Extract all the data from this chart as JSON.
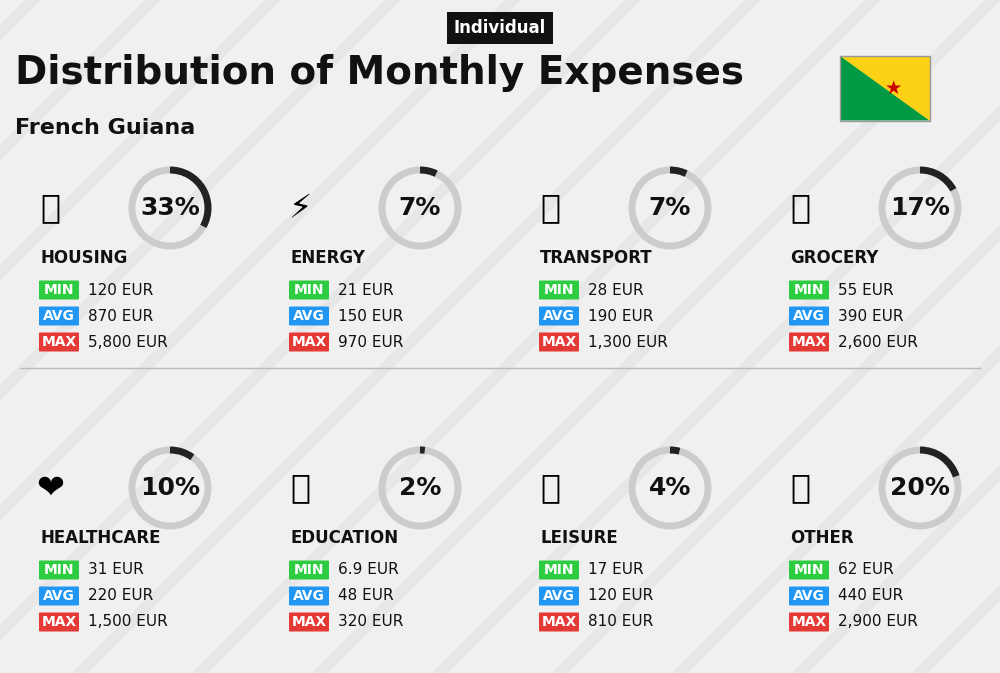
{
  "title": "Distribution of Monthly Expenses",
  "subtitle": "French Guiana",
  "badge": "Individual",
  "background_color": "#f0f0f0",
  "categories": [
    {
      "name": "HOUSING",
      "percent": 33,
      "min": "120 EUR",
      "avg": "870 EUR",
      "max": "5,800 EUR",
      "col": 0,
      "row": 0
    },
    {
      "name": "ENERGY",
      "percent": 7,
      "min": "21 EUR",
      "avg": "150 EUR",
      "max": "970 EUR",
      "col": 1,
      "row": 0
    },
    {
      "name": "TRANSPORT",
      "percent": 7,
      "min": "28 EUR",
      "avg": "190 EUR",
      "max": "1,300 EUR",
      "col": 2,
      "row": 0
    },
    {
      "name": "GROCERY",
      "percent": 17,
      "min": "55 EUR",
      "avg": "390 EUR",
      "max": "2,600 EUR",
      "col": 3,
      "row": 0
    },
    {
      "name": "HEALTHCARE",
      "percent": 10,
      "min": "31 EUR",
      "avg": "220 EUR",
      "max": "1,500 EUR",
      "col": 0,
      "row": 1
    },
    {
      "name": "EDUCATION",
      "percent": 2,
      "min": "6.9 EUR",
      "avg": "48 EUR",
      "max": "320 EUR",
      "col": 1,
      "row": 1
    },
    {
      "name": "LEISURE",
      "percent": 4,
      "min": "17 EUR",
      "avg": "120 EUR",
      "max": "810 EUR",
      "col": 2,
      "row": 1
    },
    {
      "name": "OTHER",
      "percent": 20,
      "min": "62 EUR",
      "avg": "440 EUR",
      "max": "2,900 EUR",
      "col": 3,
      "row": 1
    }
  ],
  "color_min": "#2ecc40",
  "color_avg": "#2196f3",
  "color_max": "#e53935",
  "color_text": "#111111",
  "donut_color": "#222222",
  "donut_bg": "#cccccc",
  "title_fontsize": 28,
  "subtitle_fontsize": 16,
  "badge_fontsize": 12,
  "cat_fontsize": 11,
  "val_fontsize": 11,
  "pct_fontsize": 18
}
